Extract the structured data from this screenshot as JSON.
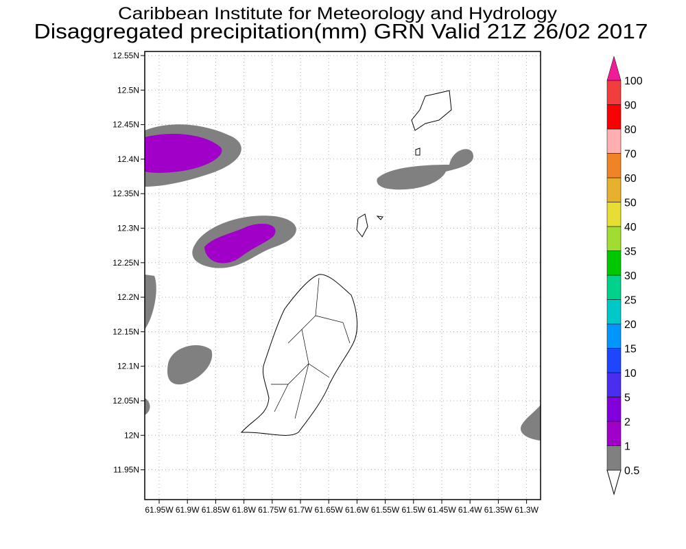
{
  "header": {
    "title": "Caribbean Institute for Meteorology and Hydrology",
    "subtitle": "Disaggregated precipitation(mm) GRN Valid 21Z 26/02 2017"
  },
  "map": {
    "lon_labels": [
      "61.95W",
      "61.9W",
      "61.85W",
      "61.8W",
      "61.75W",
      "61.7W",
      "61.65W",
      "61.6W",
      "61.55W",
      "61.5W",
      "61.45W",
      "61.4W",
      "61.35W",
      "61.3W"
    ],
    "lat_labels": [
      "12.55N",
      "12.5N",
      "12.45N",
      "12.4N",
      "12.35N",
      "12.3N",
      "12.25N",
      "12.2N",
      "12.15N",
      "12.1N",
      "12.05N",
      "12N",
      "11.95N"
    ]
  },
  "legend": {
    "labels": [
      0.5,
      1,
      2,
      5,
      10,
      15,
      20,
      25,
      30,
      35,
      40,
      50,
      60,
      70,
      80,
      90,
      100
    ],
    "colors": [
      "#808080",
      "#a000c8",
      "#8200dc",
      "#4b2df0",
      "#1e46ff",
      "#0096ff",
      "#00c8c8",
      "#00d28c",
      "#00c800",
      "#a0dc32",
      "#e6dc32",
      "#e6af2d",
      "#f08228",
      "#ffafaf",
      "#fa0000",
      "#f03c3c"
    ],
    "over_color": "#f01e96"
  }
}
